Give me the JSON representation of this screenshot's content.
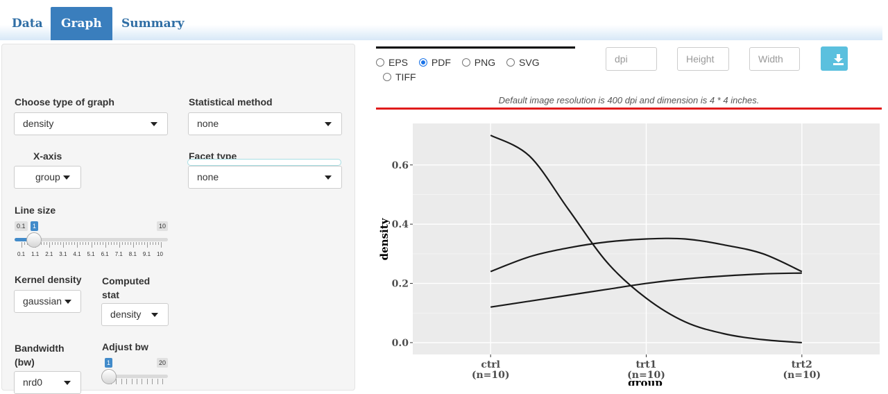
{
  "tabs": [
    {
      "label": "Data",
      "active": false
    },
    {
      "label": "Graph",
      "active": true
    },
    {
      "label": "Summary",
      "active": false
    }
  ],
  "sidebar": {
    "graph_type": {
      "label": "Choose type of graph",
      "value": "density"
    },
    "stat_method": {
      "label": "Statistical method",
      "value": "none"
    },
    "x_axis": {
      "label": "X-axis",
      "value": "group"
    },
    "facet_type": {
      "label": "Facet type",
      "value": "none"
    },
    "line_size": {
      "label": "Line size",
      "min": "0.1",
      "max": "10",
      "value": "1",
      "value_fraction": 0.091,
      "ticks": [
        "0.1",
        "1.1",
        "2.1",
        "3.1",
        "4.1",
        "5.1",
        "6.1",
        "7.1",
        "8.1",
        "9.1",
        "10"
      ]
    },
    "kernel_density": {
      "label": "Kernel density",
      "value": "gaussian"
    },
    "computed_stat": {
      "label": "Computed stat",
      "value": "density"
    },
    "bandwidth": {
      "label": "Bandwidth (bw)",
      "value": "nrd0"
    },
    "adjust_bw": {
      "label": "Adjust bw",
      "min": "1",
      "max": "20",
      "value": "1",
      "value_fraction": 0.0
    }
  },
  "download": {
    "formats": [
      {
        "label": "EPS",
        "checked": false
      },
      {
        "label": "PDF",
        "checked": true
      },
      {
        "label": "PNG",
        "checked": false
      },
      {
        "label": "SVG",
        "checked": false
      },
      {
        "label": "TIFF",
        "checked": false
      }
    ],
    "dpi_placeholder": "dpi",
    "height_placeholder": "Height",
    "width_placeholder": "Width",
    "button_icon": "download-icon",
    "note": "Default image resolution is 400 dpi and dimension is 4 * 4 inches."
  },
  "colors": {
    "accent": "#3a7ebd",
    "download_button": "#5bc0de",
    "red_rule": "#e01b1b",
    "panel_bg": "#ebebeb"
  },
  "chart_data": {
    "type": "line",
    "xlabel": "group",
    "ylabel": "density",
    "categories": [
      "ctrl\n(n=10)",
      "trt1\n(n=10)",
      "trt2\n(n=10)"
    ],
    "category_names": [
      "ctrl",
      "trt1",
      "trt2"
    ],
    "category_counts": [
      "(n=10)",
      "(n=10)",
      "(n=10)"
    ],
    "x": [
      1,
      1.25,
      1.5,
      1.75,
      2,
      2.25,
      2.5,
      2.75,
      3
    ],
    "yticks": [
      "0.0",
      "0.2",
      "0.4",
      "0.6"
    ],
    "ylim": [
      -0.04,
      0.74
    ],
    "grid": true,
    "series": [
      {
        "values": [
          0.7,
          0.63,
          0.45,
          0.27,
          0.15,
          0.07,
          0.03,
          0.01,
          0.0
        ]
      },
      {
        "values": [
          0.24,
          0.29,
          0.32,
          0.34,
          0.35,
          0.35,
          0.33,
          0.3,
          0.24
        ]
      },
      {
        "values": [
          0.12,
          0.14,
          0.16,
          0.18,
          0.2,
          0.215,
          0.225,
          0.232,
          0.235
        ]
      }
    ]
  }
}
